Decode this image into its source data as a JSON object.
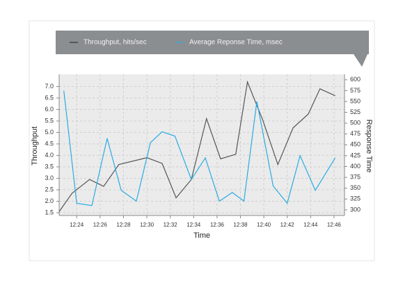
{
  "chart_data": {
    "type": "line",
    "legend_position": "top",
    "grid": true,
    "x_label": "Time",
    "y_label": "Throughput",
    "y2_label": "Response Time",
    "xlim": [
      22.5,
      46.9
    ],
    "xticks": [
      {
        "value": 24,
        "label": "12:24"
      },
      {
        "value": 26,
        "label": "12:26"
      },
      {
        "value": 28,
        "label": "12:28"
      },
      {
        "value": 30,
        "label": "12:30"
      },
      {
        "value": 32,
        "label": "12:32"
      },
      {
        "value": 34,
        "label": "12:34"
      },
      {
        "value": 36,
        "label": "12:36"
      },
      {
        "value": 38,
        "label": "12:38"
      },
      {
        "value": 40,
        "label": "12:40"
      },
      {
        "value": 42,
        "label": "12:42"
      },
      {
        "value": 44,
        "label": "12:44"
      },
      {
        "value": 46,
        "label": "12:46"
      }
    ],
    "ylim": [
      1.38,
      7.53
    ],
    "yticks": [
      1.5,
      {
        "value": 2,
        "label": "2.0"
      },
      2.5,
      {
        "value": 3,
        "label": "3.0"
      },
      3.5,
      {
        "value": 4,
        "label": "4.0"
      },
      4.5,
      {
        "value": 5,
        "label": "5.0"
      },
      5.5,
      {
        "value": 6,
        "label": "6.0"
      },
      6.5,
      {
        "value": 7,
        "label": "7.0"
      }
    ],
    "y2lim": [
      287,
      612.5
    ],
    "y2ticks": [
      300,
      325,
      350,
      375,
      400,
      425,
      450,
      475,
      500,
      525,
      550,
      575,
      600
    ],
    "series": [
      {
        "name": "Throughput, hits/sec",
        "color": "#555555",
        "x": [
          22.5,
          23.6,
          25.1,
          26.3,
          27.6,
          29.6,
          30.0,
          31.3,
          32.5,
          33.8,
          35.1,
          36.3,
          37.6,
          38.6,
          39.9,
          41.2,
          42.5,
          43.8,
          44.8,
          46.1
        ],
        "values": [
          1.55,
          2.35,
          2.95,
          2.65,
          3.6,
          3.85,
          3.9,
          3.65,
          2.15,
          2.95,
          5.6,
          3.85,
          4.05,
          7.2,
          5.55,
          3.6,
          5.2,
          5.8,
          6.9,
          6.6
        ]
      },
      {
        "name": "Average Reponse Time, msec",
        "color": "#29abe2",
        "axis": "y2",
        "x": [
          22.9,
          24.0,
          25.3,
          26.6,
          27.8,
          29.1,
          30.3,
          31.3,
          32.4,
          33.8,
          35.0,
          36.2,
          37.3,
          38.3,
          39.4,
          40.8,
          42.0,
          43.1,
          44.4,
          46.1
        ],
        "values": [
          575,
          315,
          310,
          465,
          345,
          320,
          455,
          480,
          470,
          370,
          420,
          320,
          340,
          320,
          550,
          355,
          315,
          425,
          345,
          420
        ]
      }
    ]
  }
}
